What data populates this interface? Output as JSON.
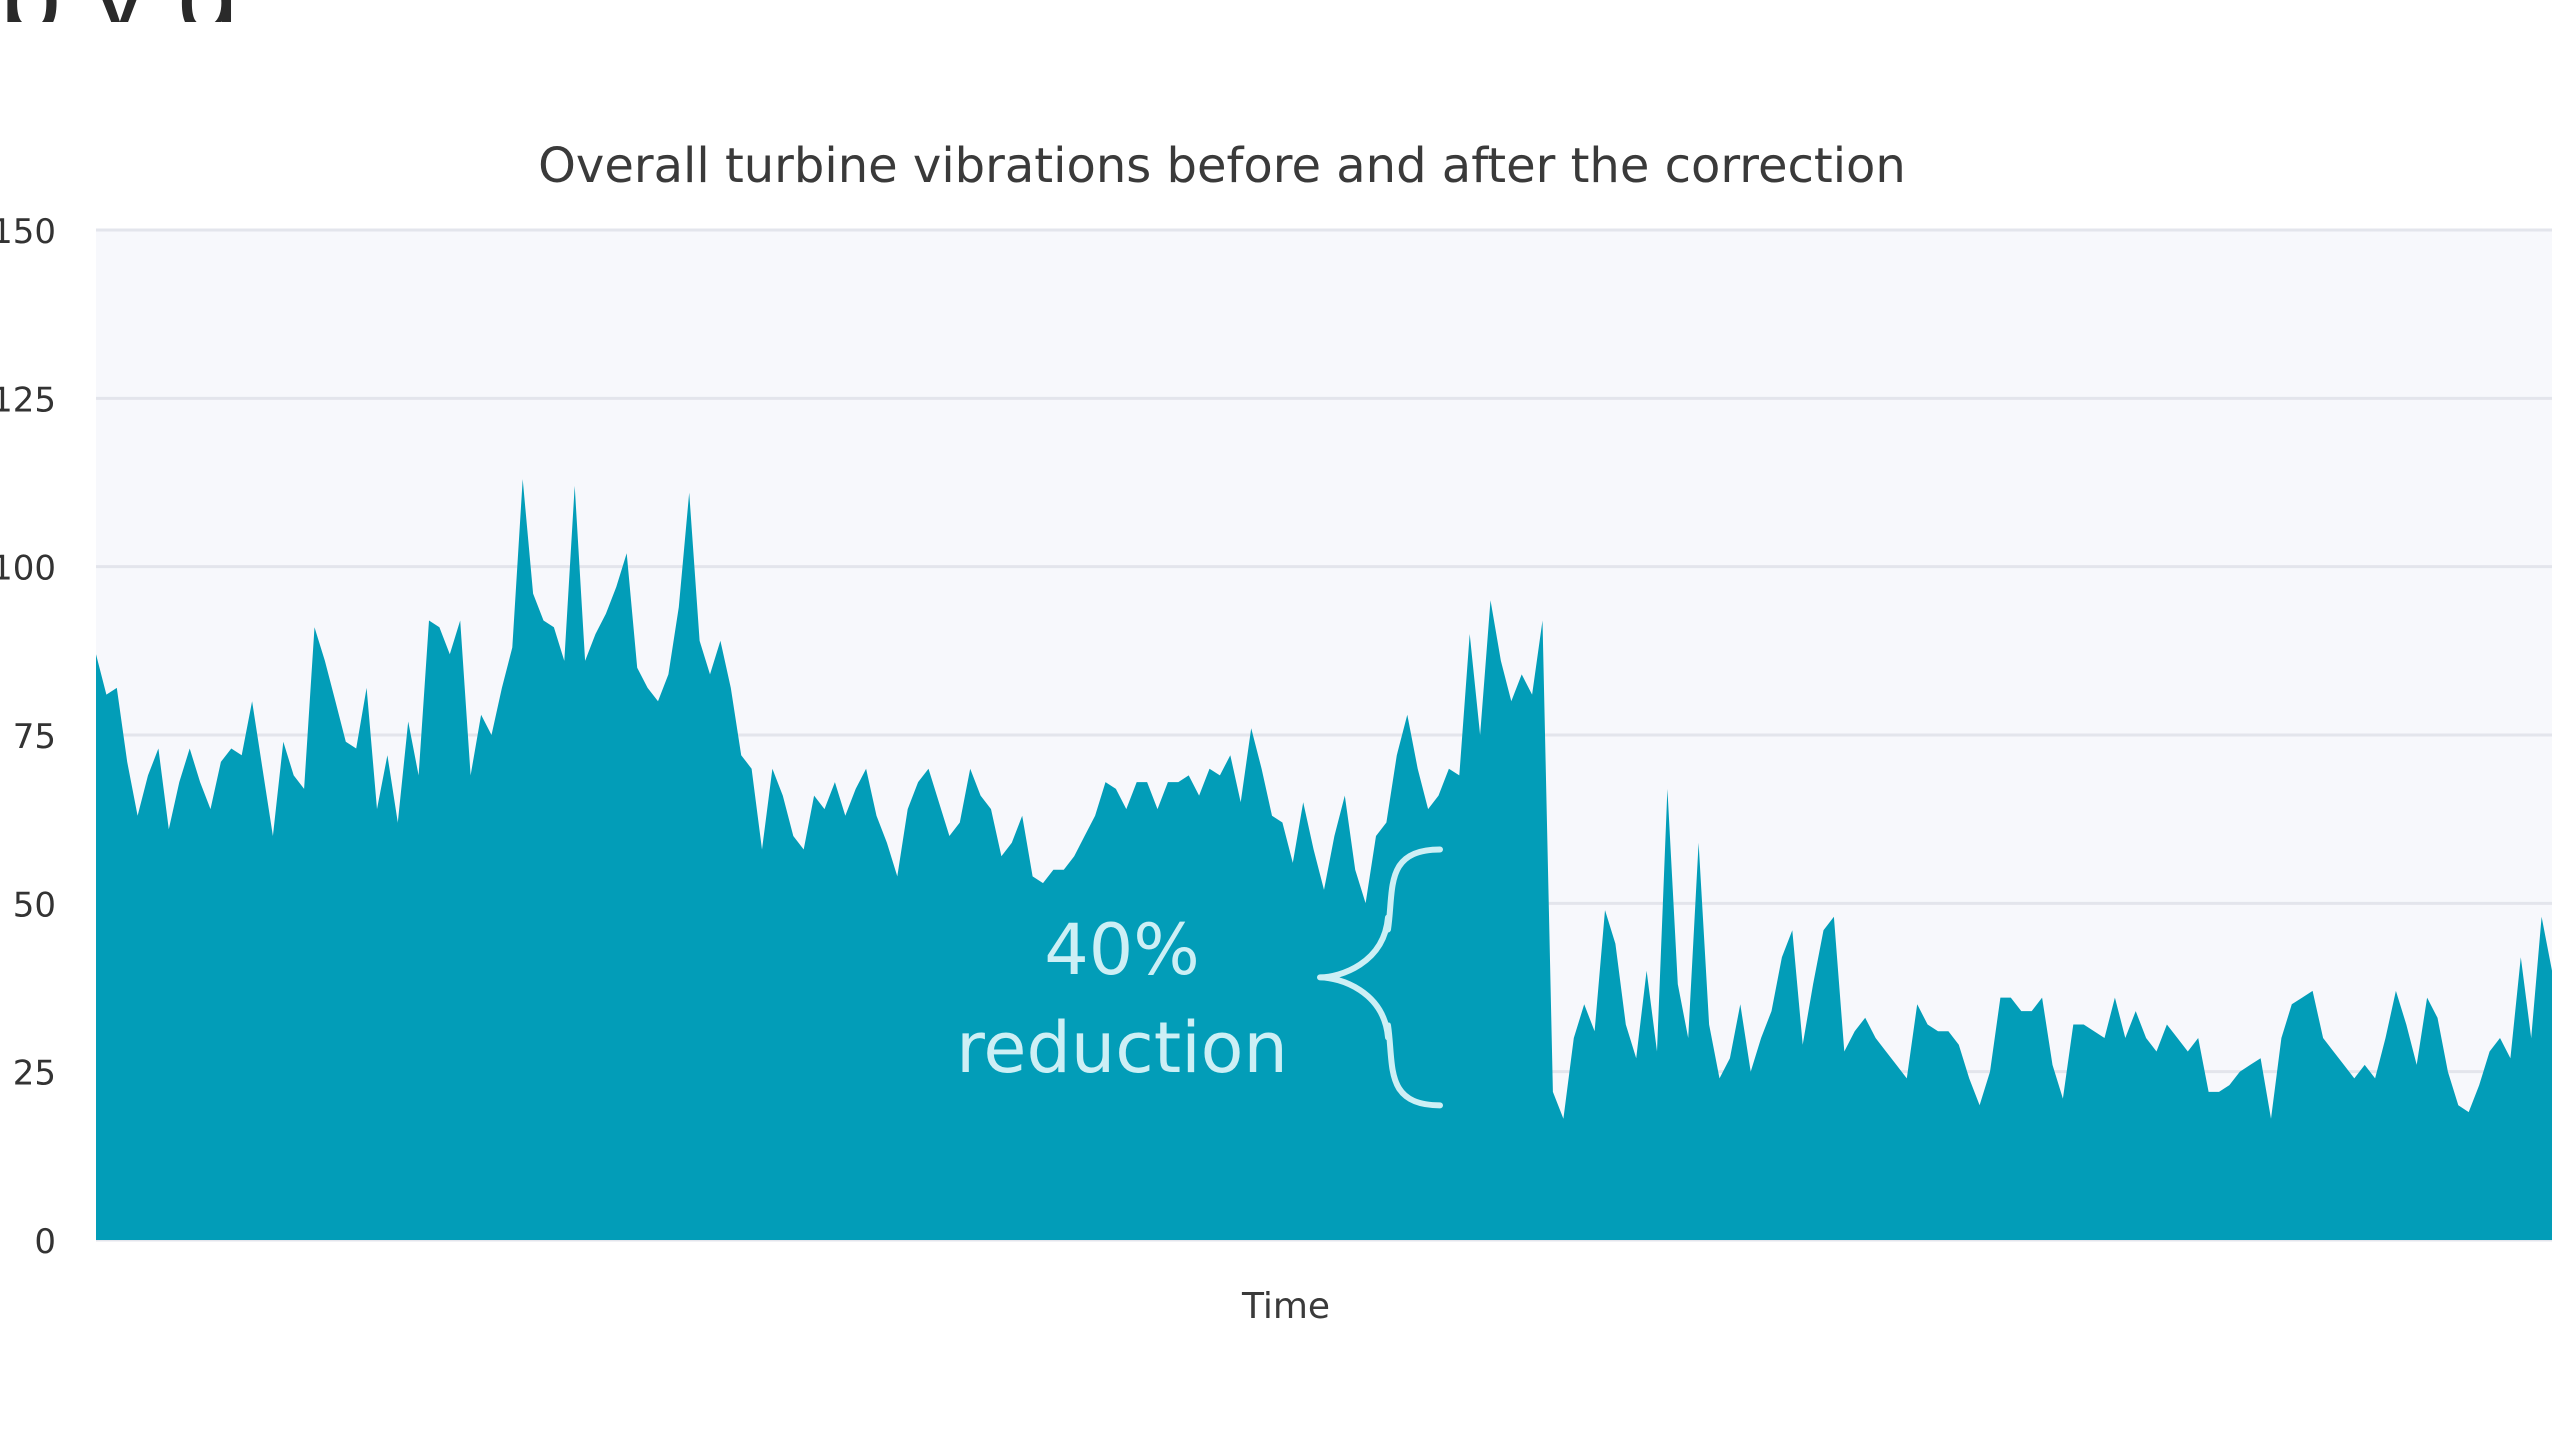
{
  "page": {
    "heading_fragment": "p          y                    g"
  },
  "chart_data": {
    "type": "area",
    "title": "Overall turbine vibrations before and after the correction",
    "xlabel": "Time",
    "ylabel": "",
    "ylim": [
      0,
      150
    ],
    "yticks": [
      0,
      25,
      50,
      75,
      100,
      125,
      150
    ],
    "grid": true,
    "x_tick_labels": false,
    "colors": {
      "area": "#029DB8",
      "plot_background": "#F7F8FC",
      "grid": "#E3E5EC",
      "annotation": "#CDEFF5",
      "axis_text": "#333333"
    },
    "annotation": {
      "line1": "40%",
      "line2": "reduction",
      "brace_y_range": [
        20,
        58
      ]
    },
    "series": [
      {
        "values": [
          87,
          81,
          82,
          71,
          63,
          69,
          73,
          61,
          68,
          73,
          68,
          64,
          71,
          73,
          72,
          80,
          70,
          60,
          74,
          69,
          67,
          91,
          86,
          80,
          74,
          73,
          82,
          64,
          72,
          62,
          77,
          69,
          92,
          91,
          87,
          92,
          69,
          78,
          75,
          82,
          88,
          113,
          96,
          92,
          91,
          86,
          112,
          86,
          90,
          93,
          97,
          102,
          85,
          82,
          80,
          84,
          94,
          111,
          89,
          84,
          89,
          82,
          72,
          70,
          58,
          70,
          66,
          60,
          58,
          66,
          64,
          68,
          63,
          67,
          70,
          63,
          59,
          54,
          64,
          68,
          70,
          65,
          60,
          62,
          70,
          66,
          64,
          57,
          59,
          63,
          54,
          53,
          55,
          55,
          57,
          60,
          63,
          68,
          67,
          64,
          68,
          68,
          64,
          68,
          68,
          69,
          66,
          70,
          69,
          72,
          65,
          76,
          70,
          63,
          62,
          56,
          65,
          58,
          52,
          60,
          66,
          55,
          50,
          60,
          62,
          72,
          78,
          70,
          64,
          66,
          70,
          69,
          90,
          75,
          95,
          86,
          80,
          84,
          81,
          92,
          22,
          18,
          30,
          35,
          31,
          49,
          44,
          32,
          27,
          40,
          28,
          67,
          38,
          30,
          59,
          32,
          24,
          27,
          35,
          25,
          30,
          34,
          42,
          46,
          29,
          38,
          46,
          48,
          28,
          31,
          33,
          30,
          28,
          26,
          24,
          35,
          32,
          31,
          31,
          29,
          24,
          20,
          25,
          36,
          36,
          34,
          34,
          36,
          26,
          21,
          32,
          32,
          31,
          30,
          36,
          30,
          34,
          30,
          28,
          32,
          30,
          28,
          30,
          22,
          22,
          23,
          25,
          26,
          27,
          18,
          30,
          35,
          36,
          37,
          30,
          28,
          26,
          24,
          26,
          24,
          30,
          37,
          32,
          26,
          36,
          33,
          25,
          20,
          19,
          23,
          28,
          30,
          27,
          42,
          30,
          48,
          40
        ]
      }
    ]
  }
}
